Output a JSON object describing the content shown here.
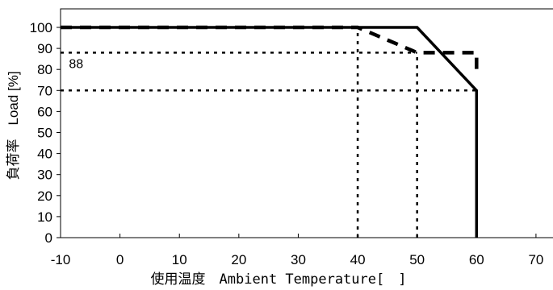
{
  "chart_data": {
    "type": "line",
    "xlabel": "使用温度　Ambient Temperature[　]",
    "ylabel": "負荷率　Load [%]",
    "xlim": [
      -10,
      73
    ],
    "ylim": [
      0,
      100
    ],
    "x_ticks": [
      -10,
      0,
      10,
      20,
      30,
      40,
      50,
      60,
      70
    ],
    "y_ticks": [
      0,
      10,
      20,
      30,
      40,
      50,
      60,
      70,
      80,
      90,
      100
    ],
    "grid": false,
    "series": [
      {
        "style": "solid",
        "x": [
          -10,
          50,
          60,
          60
        ],
        "y": [
          100,
          100,
          70,
          0
        ]
      },
      {
        "style": "dashed",
        "x": [
          -10,
          40,
          50,
          55,
          60,
          60
        ],
        "y": [
          100,
          100,
          88,
          88,
          88,
          80
        ]
      }
    ],
    "reference_lines": [
      {
        "orientation": "horizontal",
        "y": 88,
        "x_from": -10,
        "x_to": 50
      },
      {
        "orientation": "horizontal",
        "y": 70,
        "x_from": -10,
        "x_to": 60
      },
      {
        "orientation": "vertical",
        "x": 40,
        "y_from": 0,
        "y_to": 100
      },
      {
        "orientation": "vertical",
        "x": 50,
        "y_from": 0,
        "y_to": 88
      }
    ],
    "annotations": [
      {
        "text": "88",
        "x": -9,
        "y": 88
      }
    ]
  }
}
